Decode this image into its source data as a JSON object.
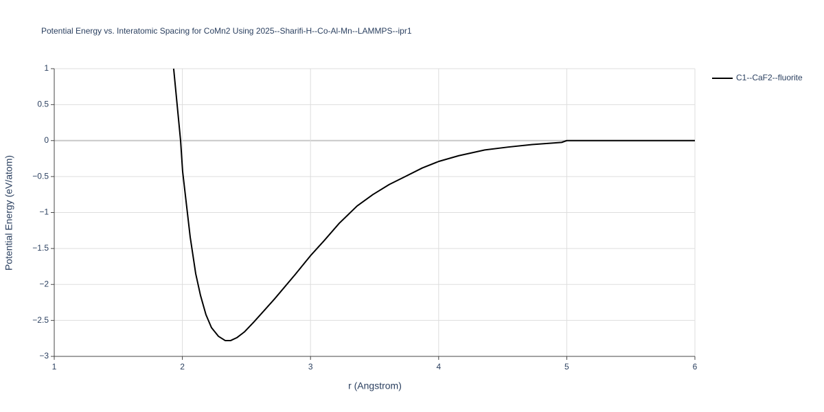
{
  "chart_data": {
    "type": "line",
    "title": "Potential Energy vs. Interatomic Spacing for CoMn2 Using 2025--Sharifi-H--Co-Al-Mn--LAMMPS--ipr1",
    "x_label": "r (Angstrom)",
    "y_label": "Potential Energy (eV/atom)",
    "x": [
      1.932,
      1.986,
      2.002,
      2.061,
      2.104,
      2.141,
      2.184,
      2.227,
      2.281,
      2.334,
      2.377,
      2.425,
      2.484,
      2.559,
      2.72,
      2.881,
      3.0,
      3.107,
      3.224,
      3.363,
      3.487,
      3.615,
      3.739,
      3.873,
      4.0,
      4.157,
      4.36,
      4.542,
      4.73,
      4.96,
      5.0,
      6.0
    ],
    "series": [
      {
        "name": "C1--CaF2--fluorite",
        "color": "#000000",
        "values": [
          1,
          0,
          -0.43,
          -1.34,
          -1.85,
          -2.15,
          -2.42,
          -2.6,
          -2.72,
          -2.78,
          -2.78,
          -2.74,
          -2.66,
          -2.52,
          -2.2,
          -1.86,
          -1.6,
          -1.39,
          -1.15,
          -0.91,
          -0.75,
          -0.61,
          -0.5,
          -0.38,
          -0.29,
          -0.21,
          -0.13,
          -0.09,
          -0.055,
          -0.025,
          0,
          0
        ]
      }
    ],
    "xlim": [
      1,
      6
    ],
    "xticks": [
      1,
      2,
      3,
      4,
      5,
      6
    ],
    "ylim": [
      -3,
      1
    ],
    "yticks": [
      {
        "value": -3,
        "label": "−3"
      },
      {
        "value": -2.5,
        "label": "−2.5"
      },
      {
        "value": -2,
        "label": "−2"
      },
      {
        "value": -1.5,
        "label": "−1.5"
      },
      {
        "value": -1,
        "label": "−1"
      },
      {
        "value": -0.5,
        "label": "−0.5"
      },
      0,
      0.5,
      1
    ],
    "grid": true,
    "legend": "top-right"
  }
}
